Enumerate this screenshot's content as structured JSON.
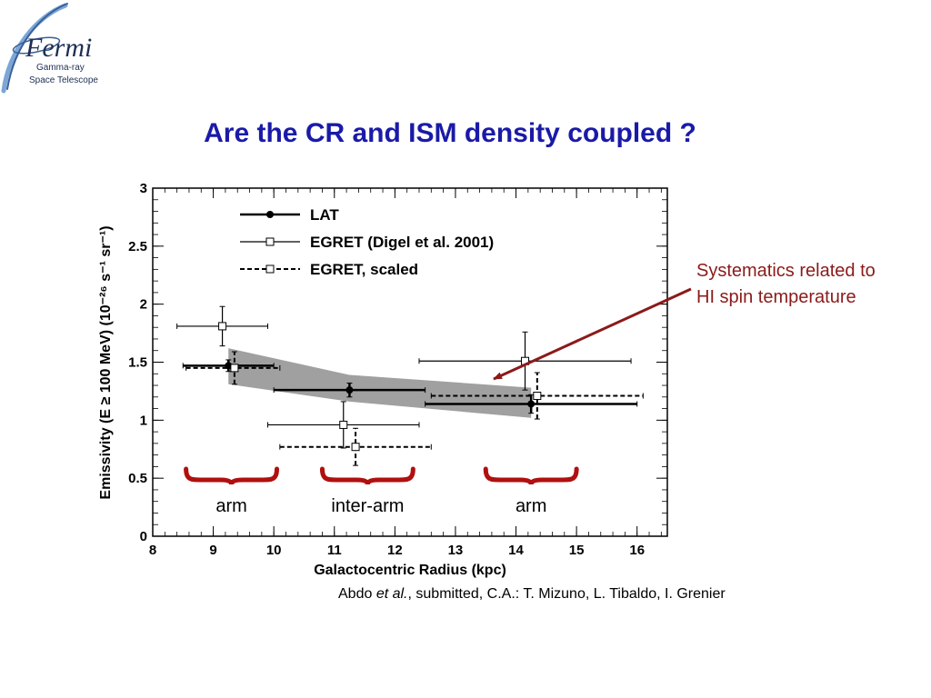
{
  "logo": {
    "brand": "Fermi",
    "line1": "Gamma-ray",
    "line2": "Space Telescope",
    "colors": {
      "orbit": "#3a5f9a",
      "text": "#1e2f55",
      "swoosh": "#7ba6d6"
    }
  },
  "slide_title": "Are the CR and ISM density coupled ?",
  "annotation": {
    "line1": "Systematics related to",
    "line2": "HI spin temperature",
    "color": "#8b1a1a"
  },
  "credit": {
    "author": "Abdo ",
    "etal": "et al.",
    "rest": ", submitted,  C.A.: T. Mizuno, L. Tibaldo, I. Grenier"
  },
  "chart_data": {
    "type": "scatter",
    "xlabel": "Galactocentric Radius (kpc)",
    "ylabel": "Emissivity (E ≥ 100 MeV) (10⁻²⁶ s⁻¹ sr⁻¹)",
    "xlim": [
      8,
      16.5
    ],
    "ylim": [
      0,
      3
    ],
    "xticks": [
      8,
      9,
      10,
      11,
      12,
      13,
      14,
      15,
      16
    ],
    "yticks": [
      0,
      0.5,
      1,
      1.5,
      2,
      2.5,
      3
    ],
    "ytick_labels": [
      "0",
      "0.5",
      "1",
      "1.5",
      "2",
      "2.5",
      "3"
    ],
    "grid": false,
    "legend_position": "top-left",
    "series": [
      {
        "name": "LAT",
        "marker": "filled-circle",
        "line": "solid",
        "points": [
          {
            "x": 9.25,
            "y": 1.47,
            "xerr": [
              8.5,
              10.0
            ],
            "yerr": [
              1.42,
              1.52
            ]
          },
          {
            "x": 11.25,
            "y": 1.26,
            "xerr": [
              10.0,
              12.5
            ],
            "yerr": [
              1.2,
              1.32
            ]
          },
          {
            "x": 14.25,
            "y": 1.14,
            "xerr": [
              12.5,
              16.0
            ],
            "yerr": [
              1.06,
              1.22
            ]
          }
        ]
      },
      {
        "name": "EGRET (Digel et al. 2001)",
        "marker": "open-square",
        "line": "solid-thin",
        "points": [
          {
            "x": 9.15,
            "y": 1.81,
            "xerr": [
              8.4,
              9.9
            ],
            "yerr": [
              1.64,
              1.98
            ]
          },
          {
            "x": 11.15,
            "y": 0.96,
            "xerr": [
              9.9,
              12.4
            ],
            "yerr": [
              0.76,
              1.16
            ]
          },
          {
            "x": 14.15,
            "y": 1.51,
            "xerr": [
              12.4,
              15.9
            ],
            "yerr": [
              1.26,
              1.76
            ]
          }
        ]
      },
      {
        "name": "EGRET, scaled",
        "marker": "open-square",
        "line": "dashed",
        "points": [
          {
            "x": 9.35,
            "y": 1.45,
            "xerr": [
              8.55,
              10.1
            ],
            "yerr": [
              1.31,
              1.59
            ]
          },
          {
            "x": 11.35,
            "y": 0.77,
            "xerr": [
              10.1,
              12.6
            ],
            "yerr": [
              0.61,
              0.93
            ]
          },
          {
            "x": 14.35,
            "y": 1.21,
            "xerr": [
              12.6,
              16.1
            ],
            "yerr": [
              1.01,
              1.41
            ]
          }
        ]
      }
    ],
    "band": {
      "color": "#a0a0a0",
      "x": [
        9.25,
        11.25,
        14.25
      ],
      "upper": [
        1.62,
        1.39,
        1.28
      ],
      "lower": [
        1.31,
        1.16,
        1.02
      ]
    },
    "region_labels": [
      {
        "text": "arm",
        "x_from": 8.55,
        "x_to": 10.05,
        "color": "#b01010"
      },
      {
        "text": "inter-arm",
        "x_from": 10.8,
        "x_to": 12.3,
        "color": "#b01010"
      },
      {
        "text": "arm",
        "x_from": 13.5,
        "x_to": 15.0,
        "color": "#b01010"
      }
    ],
    "region_label_color": "#000000"
  }
}
